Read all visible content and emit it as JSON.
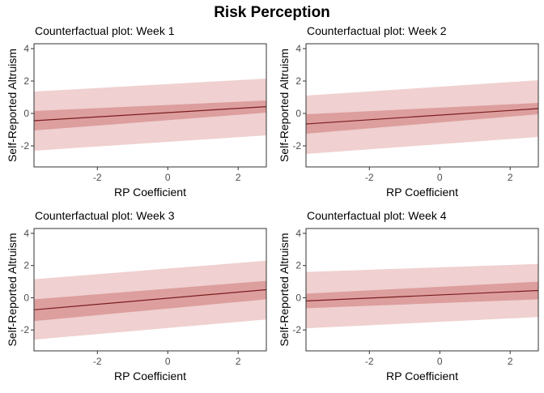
{
  "figure": {
    "title": "Risk Perception"
  },
  "chart_data": [
    {
      "type": "line",
      "title": "Counterfactual plot: Week 1",
      "xlabel": "RP Coefficient",
      "ylabel": "Self-Reported Altruism",
      "xlim": [
        -3.8,
        2.8
      ],
      "ylim": [
        -3.3,
        4.3
      ],
      "xticks": [
        -2,
        0,
        2
      ],
      "yticks": [
        -2,
        0,
        2,
        4
      ],
      "grid": false,
      "colors": {
        "line": "#7b1e1e",
        "inner_band": "#dd9e9e",
        "outer_band": "#f0d0d0"
      },
      "x": [
        -3.8,
        2.8
      ],
      "mean": [
        -0.45,
        0.42
      ],
      "inner_lower": [
        -1.05,
        0.05
      ],
      "inner_upper": [
        0.15,
        0.8
      ],
      "outer_lower": [
        -2.3,
        -1.35
      ],
      "outer_upper": [
        1.35,
        2.15
      ]
    },
    {
      "type": "line",
      "title": "Counterfactual plot: Week 2",
      "xlabel": "RP Coefficient",
      "ylabel": "Self-Reported Altruism",
      "xlim": [
        -3.8,
        2.8
      ],
      "ylim": [
        -3.3,
        4.3
      ],
      "xticks": [
        -2,
        0,
        2
      ],
      "yticks": [
        -2,
        0,
        2,
        4
      ],
      "grid": false,
      "colors": {
        "line": "#7b1e1e",
        "inner_band": "#dd9e9e",
        "outer_band": "#f0d0d0"
      },
      "x": [
        -3.8,
        2.8
      ],
      "mean": [
        -0.65,
        0.3
      ],
      "inner_lower": [
        -1.25,
        -0.05
      ],
      "inner_upper": [
        -0.05,
        0.65
      ],
      "outer_lower": [
        -2.5,
        -1.45
      ],
      "outer_upper": [
        1.1,
        2.05
      ]
    },
    {
      "type": "line",
      "title": "Counterfactual plot: Week 3",
      "xlabel": "RP Coefficient",
      "ylabel": "Self-Reported Altruism",
      "xlim": [
        -3.8,
        2.8
      ],
      "ylim": [
        -3.3,
        4.3
      ],
      "xticks": [
        -2,
        0,
        2
      ],
      "yticks": [
        -2,
        0,
        2,
        4
      ],
      "grid": false,
      "colors": {
        "line": "#7b1e1e",
        "inner_band": "#dd9e9e",
        "outer_band": "#f0d0d0"
      },
      "x": [
        -3.8,
        2.8
      ],
      "mean": [
        -0.75,
        0.5
      ],
      "inner_lower": [
        -1.45,
        -0.1
      ],
      "inner_upper": [
        -0.1,
        1.05
      ],
      "outer_lower": [
        -2.6,
        -1.35
      ],
      "outer_upper": [
        1.15,
        2.3
      ]
    },
    {
      "type": "line",
      "title": "Counterfactual plot: Week 4",
      "xlabel": "RP Coefficient",
      "ylabel": "Self-Reported Altruism",
      "xlim": [
        -3.8,
        2.8
      ],
      "ylim": [
        -3.3,
        4.3
      ],
      "xticks": [
        -2,
        0,
        2
      ],
      "yticks": [
        -2,
        0,
        2,
        4
      ],
      "grid": false,
      "colors": {
        "line": "#7b1e1e",
        "inner_band": "#dd9e9e",
        "outer_band": "#f0d0d0"
      },
      "x": [
        -3.8,
        2.8
      ],
      "mean": [
        -0.2,
        0.45
      ],
      "inner_lower": [
        -0.65,
        -0.1
      ],
      "inner_upper": [
        0.25,
        1.0
      ],
      "outer_lower": [
        -1.9,
        -1.2
      ],
      "outer_upper": [
        1.6,
        2.1
      ]
    }
  ]
}
